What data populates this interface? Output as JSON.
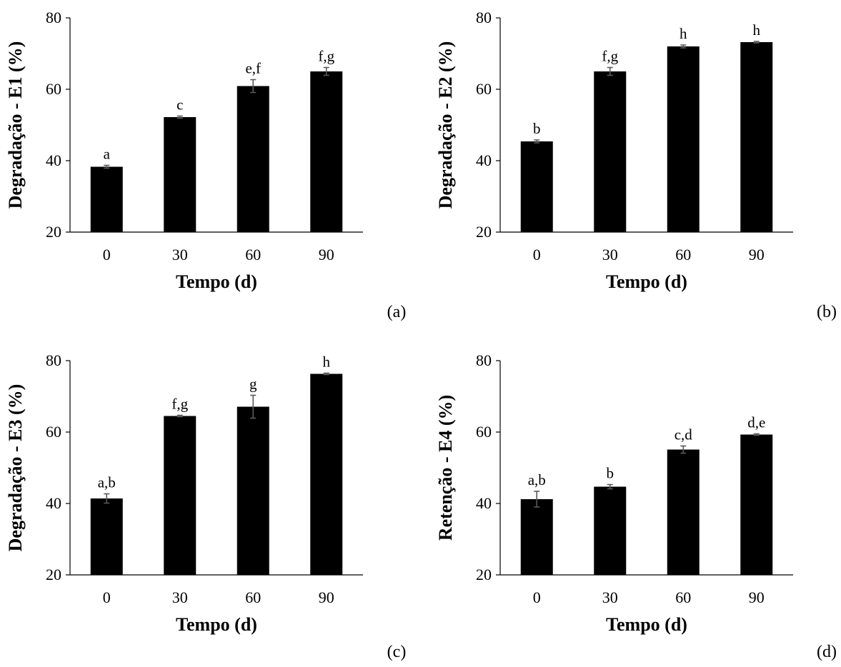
{
  "chart_data": [
    {
      "type": "bar",
      "panel_label": "(a)",
      "categories": [
        "0",
        "30",
        "60",
        "90"
      ],
      "values": [
        38.3,
        52.2,
        60.9,
        65.0
      ],
      "errors": [
        0.4,
        0.3,
        1.8,
        1.1
      ],
      "letters": [
        "a",
        "c",
        "e,f",
        "f,g"
      ],
      "xlabel": "Tempo (d)",
      "ylabel": "Degradação - E1 (%)",
      "ylim": [
        20,
        80
      ],
      "yticks": [
        "20",
        "40",
        "60",
        "80"
      ],
      "bar_color": "#000000",
      "error_color": "#595959",
      "grid": false,
      "legend": "none"
    },
    {
      "type": "bar",
      "panel_label": "(b)",
      "categories": [
        "0",
        "30",
        "60",
        "90"
      ],
      "values": [
        45.4,
        65.0,
        72.0,
        73.2
      ],
      "errors": [
        0.4,
        1.1,
        0.4,
        0.2
      ],
      "letters": [
        "b",
        "f,g",
        "h",
        "h"
      ],
      "xlabel": "Tempo (d)",
      "ylabel": "Degradação - E2 (%)",
      "ylim": [
        20,
        80
      ],
      "yticks": [
        "20",
        "40",
        "60",
        "80"
      ],
      "bar_color": "#000000",
      "error_color": "#595959",
      "grid": false,
      "legend": "none"
    },
    {
      "type": "bar",
      "panel_label": "(c)",
      "categories": [
        "0",
        "30",
        "60",
        "90"
      ],
      "values": [
        41.4,
        64.5,
        67.1,
        76.3
      ],
      "errors": [
        1.3,
        0.2,
        3.2,
        0.2
      ],
      "letters": [
        "a,b",
        "f,g",
        "g",
        "h"
      ],
      "xlabel": "Tempo (d)",
      "ylabel": "Degradação - E3 (%)",
      "ylim": [
        20,
        80
      ],
      "yticks": [
        "20",
        "40",
        "60",
        "80"
      ],
      "bar_color": "#000000",
      "error_color": "#595959",
      "grid": false,
      "legend": "none"
    },
    {
      "type": "bar",
      "panel_label": "(d)",
      "categories": [
        "0",
        "30",
        "60",
        "90"
      ],
      "values": [
        41.2,
        44.7,
        55.1,
        59.3
      ],
      "errors": [
        2.2,
        0.6,
        1.0,
        0.2
      ],
      "letters": [
        "a,b",
        "b",
        "c,d",
        "d,e"
      ],
      "xlabel": "Tempo (d)",
      "ylabel": "Retenção - E4 (%)",
      "ylim": [
        20,
        80
      ],
      "yticks": [
        "20",
        "40",
        "60",
        "80"
      ],
      "bar_color": "#000000",
      "error_color": "#595959",
      "grid": false,
      "legend": "none"
    }
  ]
}
